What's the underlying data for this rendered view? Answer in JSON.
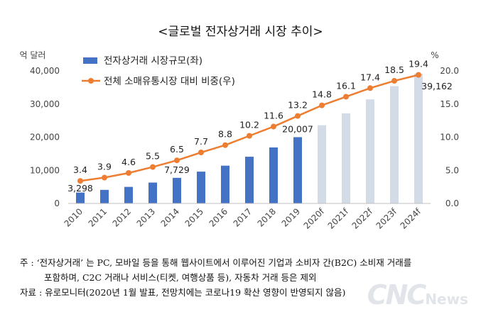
{
  "chart_data": {
    "type": "bar+line",
    "title": "<글로벌 전자상거래 시장 추이>",
    "categories": [
      "2010",
      "2011",
      "2012",
      "2013",
      "2014",
      "2015",
      "2016",
      "2017",
      "2018",
      "2019",
      "2020f",
      "2021f",
      "2022f",
      "2023f",
      "2024f"
    ],
    "bar_series": {
      "name": "전자상거래 시장규모(좌)",
      "unit_label": "억 달러",
      "values": [
        3298,
        4100,
        5000,
        6300,
        7729,
        9600,
        11400,
        14100,
        16900,
        20007,
        23600,
        27200,
        31400,
        35400,
        39162
      ],
      "actual_color": "#4472c4",
      "forecast_color": "#d3dbe6",
      "labeled": {
        "2010": "3,298",
        "2014": "7,729",
        "2019": "20,007",
        "2024f": "39,162"
      }
    },
    "line_series": {
      "name": "전체 소매유통시장 대비 비중(우)",
      "unit_label": "%",
      "values": [
        3.4,
        3.9,
        4.6,
        5.5,
        6.5,
        7.7,
        8.8,
        10.2,
        11.6,
        13.2,
        14.8,
        16.1,
        17.4,
        18.5,
        19.4
      ],
      "labels": [
        "3.4",
        "3.9",
        "4.6",
        "5.5",
        "6.5",
        "7.7",
        "8.8",
        "10.2",
        "11.6",
        "13.2",
        "14.8",
        "16.1",
        "17.4",
        "18.5",
        "19.4"
      ],
      "color": "#ed7d31"
    },
    "y_left": {
      "min": 0,
      "max": 40000,
      "ticks": [
        0,
        10000,
        20000,
        30000,
        40000
      ],
      "tick_labels": [
        "0",
        "10,000",
        "20,000",
        "30,000",
        "40,000"
      ]
    },
    "y_right": {
      "min": 0,
      "max": 20,
      "ticks": [
        0,
        5,
        10,
        15,
        20
      ],
      "tick_labels": [
        "0.0",
        "5.0",
        "10.0",
        "15.0",
        "20.0"
      ]
    },
    "legend_position": "top-left",
    "grid": false
  },
  "notes": {
    "line1": "주 : ‘전자상거래’ 는 PC, 모바일 등을 통해 웹사이트에서 이루어진 기업과 소비자 간(B2C) 소비재 거래를",
    "line2": "포함하며, C2C 거래나 서비스(티켓, 여행상품 등), 자동차 거래 등은 제외",
    "line3": "자료 : 유로모니터(2020년 1월 발표, 전망치에는 코로나19 확산 영향이 반영되지 않음)"
  },
  "watermark": {
    "main": "CNC",
    "suffix": "News"
  }
}
